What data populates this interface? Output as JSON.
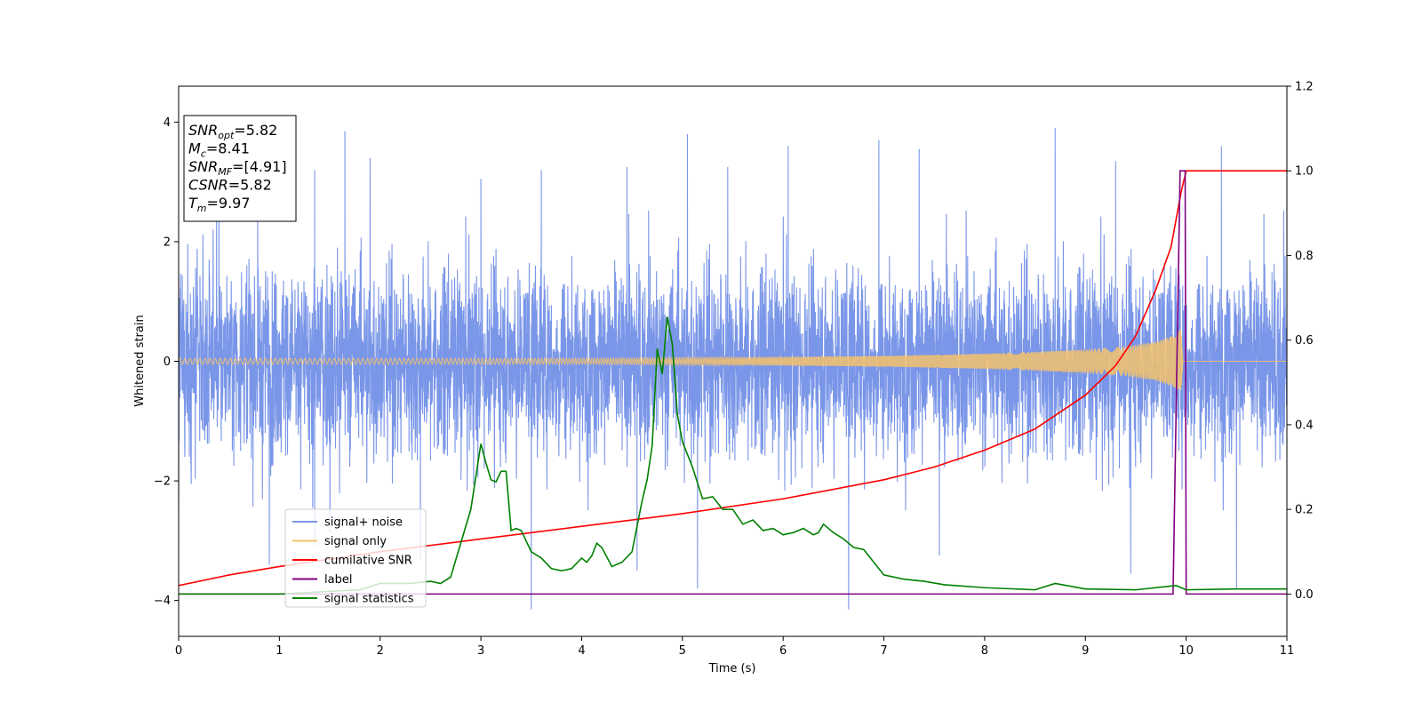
{
  "chart_data": {
    "type": "line",
    "title": "",
    "xlabel": "Time (s)",
    "ylabel": "Whitened strain",
    "y2label": "",
    "xlim": [
      0,
      11
    ],
    "ylim": [
      -4.6,
      4.6
    ],
    "y2lim": [
      -0.1,
      1.2
    ],
    "xticks": [
      "0",
      "1",
      "2",
      "3",
      "4",
      "5",
      "6",
      "7",
      "8",
      "9",
      "10",
      "11"
    ],
    "yticks": [
      "−4",
      "−2",
      "0",
      "2",
      "4"
    ],
    "y2ticks": [
      "0.0",
      "0.2",
      "0.4",
      "0.6",
      "0.8",
      "1.0",
      "1.2"
    ],
    "grid": false,
    "legend_position": "lower-left",
    "infobox": {
      "position": "top-left",
      "lines": [
        {
          "base": "SNR",
          "sub": "opt",
          "value": "=5.82"
        },
        {
          "base": "M",
          "sub": "c",
          "value": "=8.41"
        },
        {
          "base": "SNR",
          "sub": "MF",
          "value": "=[4.91]"
        },
        {
          "base": "CSNR",
          "sub": "",
          "value": "=5.82"
        },
        {
          "base": "T",
          "sub": "m",
          "value": "=9.97"
        }
      ]
    },
    "series": [
      {
        "name": "signal+ noise",
        "axis": "left",
        "color": "#7a96e8",
        "style": "noise band",
        "typical_range": [
          -2.0,
          2.3
        ],
        "spikes_up": [
          [
            0.4,
            3.1
          ],
          [
            1.35,
            3.2
          ],
          [
            1.65,
            3.85
          ],
          [
            1.9,
            3.4
          ],
          [
            3.0,
            3.05
          ],
          [
            3.6,
            3.2
          ],
          [
            4.45,
            3.25
          ],
          [
            5.05,
            3.8
          ],
          [
            5.45,
            3.25
          ],
          [
            6.05,
            3.6
          ],
          [
            6.95,
            3.7
          ],
          [
            7.35,
            3.55
          ],
          [
            8.7,
            3.9
          ],
          [
            9.3,
            3.35
          ],
          [
            10.35,
            3.6
          ]
        ],
        "spikes_down": [
          [
            0.0,
            -3.05
          ],
          [
            0.9,
            -3.4
          ],
          [
            1.35,
            -3.1
          ],
          [
            2.4,
            -3.3
          ],
          [
            3.5,
            -4.15
          ],
          [
            4.55,
            -3.5
          ],
          [
            5.15,
            -3.8
          ],
          [
            6.65,
            -4.15
          ],
          [
            7.55,
            -3.25
          ],
          [
            9.45,
            -3.55
          ],
          [
            10.5,
            -3.8
          ]
        ]
      },
      {
        "name": "signal only",
        "axis": "left",
        "color": "#f5c26b",
        "style": "chirp",
        "envelope": [
          [
            0,
            0.05
          ],
          [
            4,
            0.05
          ],
          [
            6,
            0.07
          ],
          [
            7,
            0.09
          ],
          [
            8,
            0.13
          ],
          [
            8.5,
            0.16
          ],
          [
            9.0,
            0.2
          ],
          [
            9.4,
            0.25
          ],
          [
            9.7,
            0.33
          ],
          [
            9.9,
            0.45
          ],
          [
            9.95,
            0.55
          ],
          [
            9.97,
            0.0
          ]
        ]
      },
      {
        "name": "cumilative SNR",
        "axis": "right",
        "color": "#ff0000",
        "x": [
          0,
          0.5,
          1,
          2,
          3,
          4,
          5,
          6,
          7,
          7.5,
          8,
          8.5,
          9,
          9.3,
          9.5,
          9.7,
          9.85,
          9.95,
          10,
          11
        ],
        "y": [
          0.02,
          0.045,
          0.065,
          0.1,
          0.13,
          0.16,
          0.19,
          0.225,
          0.27,
          0.3,
          0.34,
          0.39,
          0.47,
          0.54,
          0.61,
          0.72,
          0.82,
          0.95,
          1.0,
          1.0
        ]
      },
      {
        "name": "label",
        "axis": "right",
        "color": "#800080",
        "x": [
          0,
          9.87,
          9.94,
          9.99,
          10.0,
          11
        ],
        "y": [
          0,
          0,
          1.0,
          1.0,
          0,
          0
        ]
      },
      {
        "name": "signal statistics",
        "axis": "right",
        "color": "#008000",
        "x": [
          0,
          1,
          1.8,
          2.0,
          2.1,
          2.3,
          2.5,
          2.6,
          2.7,
          2.75,
          2.8,
          2.9,
          3.0,
          3.05,
          3.1,
          3.15,
          3.2,
          3.25,
          3.3,
          3.35,
          3.4,
          3.5,
          3.6,
          3.7,
          3.8,
          3.9,
          4.0,
          4.05,
          4.1,
          4.15,
          4.2,
          4.3,
          4.35,
          4.4,
          4.5,
          4.55,
          4.6,
          4.65,
          4.7,
          4.75,
          4.8,
          4.85,
          4.9,
          4.95,
          5.0,
          5.1,
          5.2,
          5.3,
          5.4,
          5.5,
          5.6,
          5.7,
          5.8,
          5.9,
          6.0,
          6.1,
          6.2,
          6.3,
          6.35,
          6.4,
          6.5,
          6.6,
          6.7,
          6.8,
          7.0,
          7.2,
          7.4,
          7.6,
          8.0,
          8.5,
          8.7,
          9.0,
          9.5,
          9.9,
          10.0,
          10.5,
          11.0
        ],
        "y": [
          0.0,
          0.0,
          0.01,
          0.025,
          0.025,
          0.025,
          0.03,
          0.025,
          0.04,
          0.08,
          0.12,
          0.2,
          0.355,
          0.31,
          0.27,
          0.265,
          0.29,
          0.29,
          0.15,
          0.155,
          0.15,
          0.1,
          0.085,
          0.06,
          0.055,
          0.06,
          0.085,
          0.075,
          0.09,
          0.12,
          0.11,
          0.065,
          0.07,
          0.075,
          0.1,
          0.16,
          0.22,
          0.27,
          0.35,
          0.58,
          0.52,
          0.655,
          0.59,
          0.425,
          0.36,
          0.3,
          0.225,
          0.23,
          0.2,
          0.2,
          0.165,
          0.175,
          0.15,
          0.155,
          0.14,
          0.145,
          0.155,
          0.14,
          0.145,
          0.165,
          0.145,
          0.13,
          0.11,
          0.105,
          0.045,
          0.035,
          0.03,
          0.022,
          0.015,
          0.01,
          0.025,
          0.012,
          0.01,
          0.02,
          0.01,
          0.012,
          0.012
        ]
      }
    ]
  }
}
